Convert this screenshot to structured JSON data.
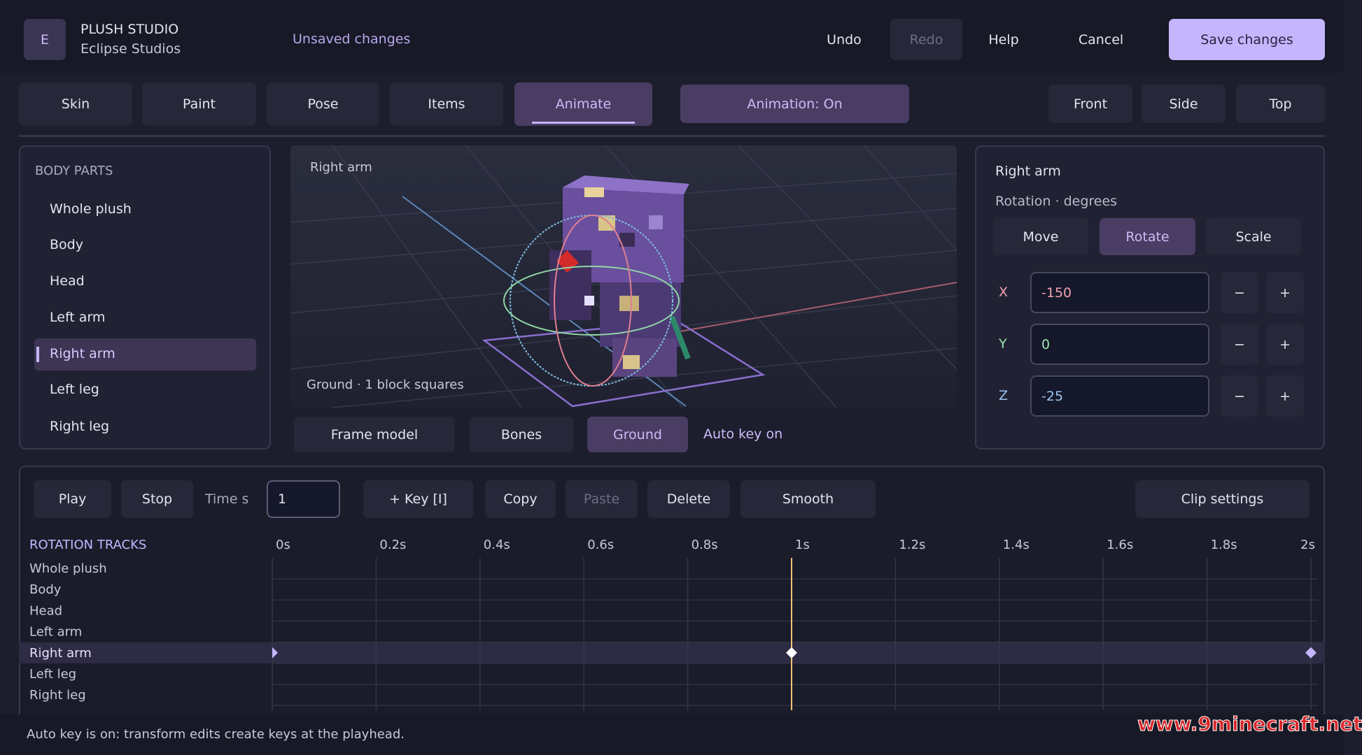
{
  "header": {
    "logo": "E",
    "app_name": "PLUSH STUDIO",
    "studio": "Eclipse Studios",
    "status": "Unsaved changes",
    "actions": [
      "Undo",
      "Redo",
      "Help",
      "Cancel"
    ],
    "save": "Save changes"
  },
  "tabs": [
    "Skin",
    "Paint",
    "Pose",
    "Items",
    "Animate"
  ],
  "animation_toggle": "Animation: On",
  "views": [
    "Front",
    "Side",
    "Top"
  ],
  "body_parts": {
    "title": "BODY PARTS",
    "items": [
      "Whole plush",
      "Body",
      "Head",
      "Left arm",
      "Right arm",
      "Left leg",
      "Right leg"
    ]
  },
  "viewport": {
    "label": "Right arm",
    "ground_note": "Ground · 1 block squares",
    "buttons": [
      "Frame model",
      "Bones",
      "Ground"
    ],
    "auto_key": "Auto key on"
  },
  "inspector": {
    "title": "Right arm",
    "subtitle": "Rotation · degrees",
    "modes": [
      "Move",
      "Rotate",
      "Scale"
    ],
    "axes": [
      {
        "axis": "X",
        "value": -150
      },
      {
        "axis": "Y",
        "value": 0
      },
      {
        "axis": "Z",
        "value": -25
      }
    ],
    "minus": "−",
    "plus": "+"
  },
  "timeline": {
    "toolbar": [
      "Play",
      "Stop"
    ],
    "time_label": "Time s",
    "time_value": 1,
    "edit_buttons": [
      "+ Key [I]",
      "Copy",
      "Paste",
      "Delete",
      "Smooth"
    ],
    "clip_settings": "Clip settings",
    "tracks_title": "ROTATION TRACKS",
    "ticks": [
      {
        "value": 0,
        "label": "0s"
      },
      {
        "value": 0.2,
        "label": "0.2s"
      },
      {
        "value": 0.4,
        "label": "0.4s"
      },
      {
        "value": 0.6,
        "label": "0.6s"
      },
      {
        "value": 0.8,
        "label": "0.8s"
      },
      {
        "value": 1,
        "label": "1s"
      },
      {
        "value": 1.2,
        "label": "1.2s"
      },
      {
        "value": 1.4,
        "label": "1.4s"
      },
      {
        "value": 1.6,
        "label": "1.6s"
      },
      {
        "value": 1.8,
        "label": "1.8s"
      },
      {
        "value": 2,
        "label": "2s"
      }
    ],
    "tracks": [
      {
        "name": "Whole plush",
        "keys": []
      },
      {
        "name": "Body",
        "keys": []
      },
      {
        "name": "Head",
        "keys": []
      },
      {
        "name": "Left arm",
        "keys": []
      },
      {
        "name": "Right arm",
        "keys": [
          0,
          1,
          2
        ]
      },
      {
        "name": "Left leg",
        "keys": []
      },
      {
        "name": "Right leg",
        "keys": []
      }
    ]
  },
  "status_bar": "Auto key is on: transform edits create keys at the playhead.",
  "watermark": "www.9minecraft.net"
}
